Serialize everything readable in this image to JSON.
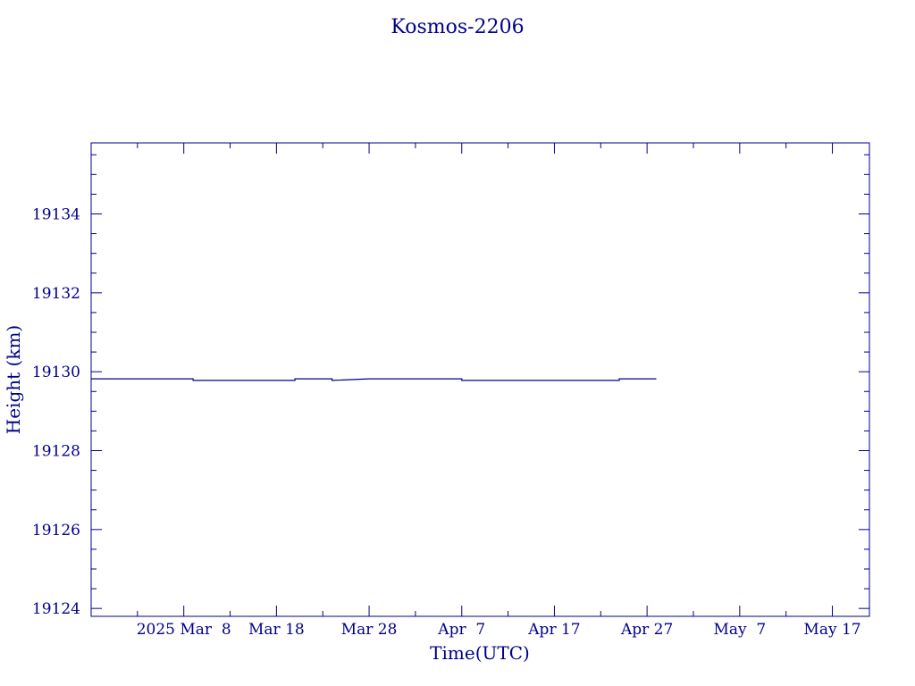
{
  "chart_data": {
    "type": "line",
    "title": "Kosmos-2206",
    "xlabel": "Time(UTC)",
    "ylabel": "Height (km)",
    "line_color": "#00008b",
    "ylim": [
      19123.8,
      19135.8
    ],
    "xlim": [
      "2025-02-26",
      "2025-05-21"
    ],
    "y_ticks": [
      19124,
      19126,
      19128,
      19130,
      19132,
      19134
    ],
    "y_tick_labels": [
      "19124",
      "19126",
      "19128",
      "19130",
      "19132",
      "19134"
    ],
    "x_tick_labels": [
      "2025 Mar  8",
      "Mar 18",
      "Mar 28",
      "Apr  7",
      "Apr 17",
      "Apr 27",
      "May  7",
      "May 17"
    ],
    "x_tick_dates": [
      "2025-03-08",
      "2025-03-18",
      "2025-03-28",
      "2025-04-07",
      "2025-04-17",
      "2025-04-27",
      "2025-05-07",
      "2025-05-17"
    ],
    "series": [
      {
        "x": [
          "2025-02-26",
          "2025-03-09",
          "2025-03-09",
          "2025-03-20",
          "2025-03-20",
          "2025-03-24",
          "2025-03-24",
          "2025-03-28",
          "2025-04-07",
          "2025-04-07",
          "2025-04-24",
          "2025-04-24",
          "2025-04-28"
        ],
        "values": [
          19129.82,
          19129.82,
          19129.78,
          19129.78,
          19129.82,
          19129.82,
          19129.78,
          19129.82,
          19129.82,
          19129.78,
          19129.78,
          19129.82,
          19129.82
        ]
      }
    ]
  }
}
